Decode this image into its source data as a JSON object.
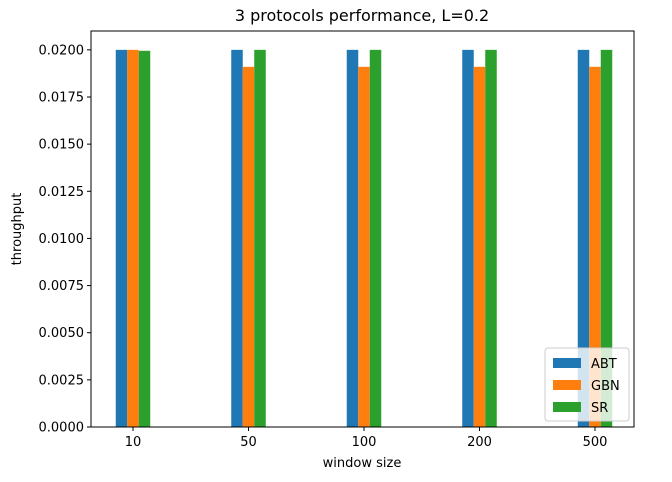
{
  "chart_data": {
    "type": "bar",
    "title": "3 protocols performance, L=0.2",
    "xlabel": "window size",
    "ylabel": "throughput",
    "categories": [
      "10",
      "50",
      "100",
      "200",
      "500"
    ],
    "series": [
      {
        "name": "ABT",
        "color": "#1f77b4",
        "values": [
          0.02,
          0.02,
          0.02,
          0.02,
          0.02
        ]
      },
      {
        "name": "GBN",
        "color": "#ff7f0e",
        "values": [
          0.02,
          0.0191,
          0.0191,
          0.0191,
          0.0191
        ]
      },
      {
        "name": "SR",
        "color": "#2ca02c",
        "values": [
          0.01995,
          0.02,
          0.02,
          0.02,
          0.02
        ]
      }
    ],
    "ylim": [
      0,
      0.021
    ],
    "yticks": [
      "0.0000",
      "0.0025",
      "0.0050",
      "0.0075",
      "0.0100",
      "0.0125",
      "0.0150",
      "0.0175",
      "0.0200"
    ],
    "grid": false,
    "legend_position": "lower-right"
  }
}
